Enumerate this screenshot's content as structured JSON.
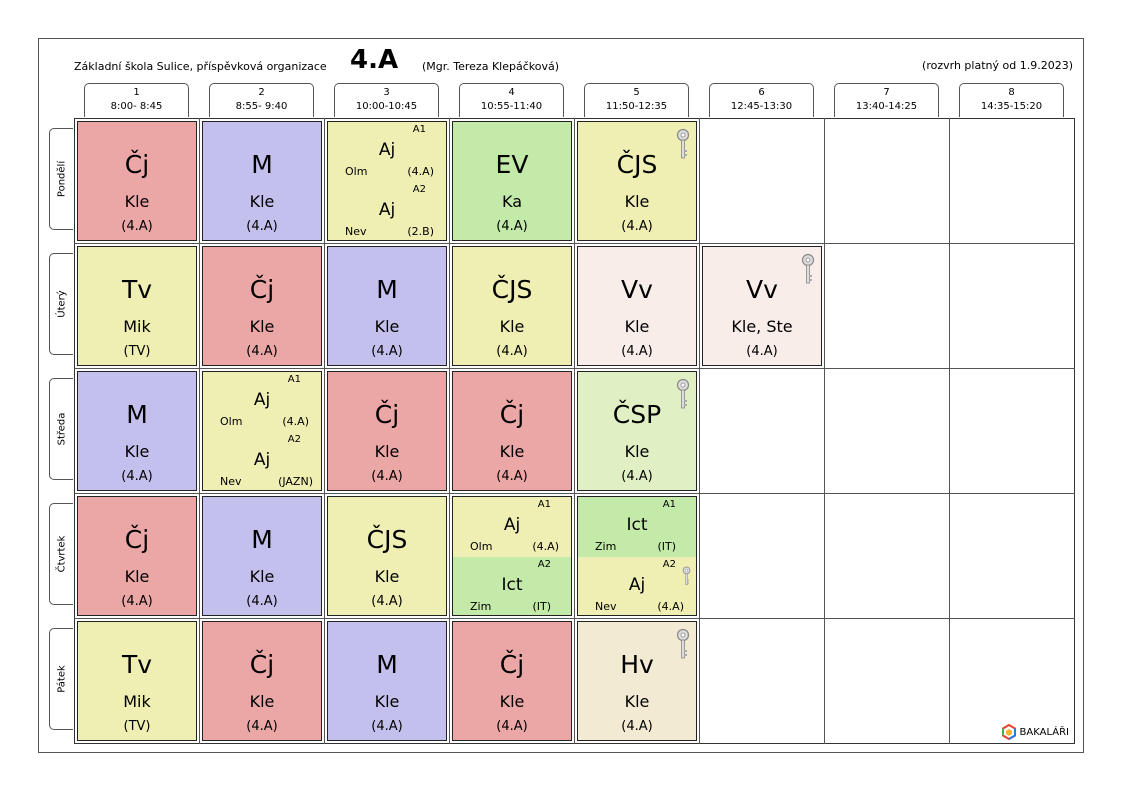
{
  "header": {
    "school": "Základní škola Sulice, příspěvková organizace",
    "class_name": "4.A",
    "teacher": "(Mgr. Tereza Klepáčková)",
    "valid_from": "(rozvrh platný od 1.9.2023)"
  },
  "periods": [
    {
      "num": "1",
      "time": "8:00- 8:45"
    },
    {
      "num": "2",
      "time": "8:55- 9:40"
    },
    {
      "num": "3",
      "time": "10:00-10:45"
    },
    {
      "num": "4",
      "time": "10:55-11:40"
    },
    {
      "num": "5",
      "time": "11:50-12:35"
    },
    {
      "num": "6",
      "time": "12:45-13:30"
    },
    {
      "num": "7",
      "time": "13:40-14:25"
    },
    {
      "num": "8",
      "time": "14:35-15:20"
    }
  ],
  "days": [
    "Pondělí",
    "Úterý",
    "Středa",
    "Čtvrtek",
    "Pátek"
  ],
  "lessons": {
    "mon_1": {
      "subject": "Čj",
      "teacher": "Kle",
      "room": "(4.A)"
    },
    "mon_2": {
      "subject": "M",
      "teacher": "Kle",
      "room": "(4.A)"
    },
    "mon_3": {
      "a1": {
        "group": "A1",
        "subject": "Aj",
        "teacher": "Olm",
        "room": "(4.A)"
      },
      "a2": {
        "group": "A2",
        "subject": "Aj",
        "teacher": "Nev",
        "room": "(2.B)"
      }
    },
    "mon_4": {
      "subject": "EV",
      "teacher": "Ka",
      "room": "(4.A)"
    },
    "mon_5": {
      "subject": "ČJS",
      "teacher": "Kle",
      "room": "(4.A)"
    },
    "tue_1": {
      "subject": "Tv",
      "teacher": "Mik",
      "room": "(TV)"
    },
    "tue_2": {
      "subject": "Čj",
      "teacher": "Kle",
      "room": "(4.A)"
    },
    "tue_3": {
      "subject": "M",
      "teacher": "Kle",
      "room": "(4.A)"
    },
    "tue_4": {
      "subject": "ČJS",
      "teacher": "Kle",
      "room": "(4.A)"
    },
    "tue_5": {
      "subject": "Vv",
      "teacher": "Kle",
      "room": "(4.A)"
    },
    "tue_6": {
      "subject": "Vv",
      "teacher": "Kle, Ste",
      "room": "(4.A)"
    },
    "wed_1": {
      "subject": "M",
      "teacher": "Kle",
      "room": "(4.A)"
    },
    "wed_2": {
      "a1": {
        "group": "A1",
        "subject": "Aj",
        "teacher": "Olm",
        "room": "(4.A)"
      },
      "a2": {
        "group": "A2",
        "subject": "Aj",
        "teacher": "Nev",
        "room": "(JAZN)"
      }
    },
    "wed_3": {
      "subject": "Čj",
      "teacher": "Kle",
      "room": "(4.A)"
    },
    "wed_4": {
      "subject": "Čj",
      "teacher": "Kle",
      "room": "(4.A)"
    },
    "wed_5": {
      "subject": "ČSP",
      "teacher": "Kle",
      "room": "(4.A)"
    },
    "thu_1": {
      "subject": "Čj",
      "teacher": "Kle",
      "room": "(4.A)"
    },
    "thu_2": {
      "subject": "M",
      "teacher": "Kle",
      "room": "(4.A)"
    },
    "thu_3": {
      "subject": "ČJS",
      "teacher": "Kle",
      "room": "(4.A)"
    },
    "thu_4": {
      "a1": {
        "group": "A1",
        "subject": "Aj",
        "teacher": "Olm",
        "room": "(4.A)"
      },
      "a2": {
        "group": "A2",
        "subject": "Ict",
        "teacher": "Zim",
        "room": "(IT)"
      }
    },
    "thu_5": {
      "a1": {
        "group": "A1",
        "subject": "Ict",
        "teacher": "Zim",
        "room": "(IT)"
      },
      "a2": {
        "group": "A2",
        "subject": "Aj",
        "teacher": "Nev",
        "room": "(4.A)"
      }
    },
    "fri_1": {
      "subject": "Tv",
      "teacher": "Mik",
      "room": "(TV)"
    },
    "fri_2": {
      "subject": "Čj",
      "teacher": "Kle",
      "room": "(4.A)"
    },
    "fri_3": {
      "subject": "M",
      "teacher": "Kle",
      "room": "(4.A)"
    },
    "fri_4": {
      "subject": "Čj",
      "teacher": "Kle",
      "room": "(4.A)"
    },
    "fri_5": {
      "subject": "Hv",
      "teacher": "Kle",
      "room": "(4.A)"
    }
  },
  "colors": {
    "czech": "#eaa7a6",
    "math": "#c3c0ed",
    "yellow": "#efeeb3",
    "green": "#c3eaa8",
    "light_pink": "#f8ede8",
    "light_green": "#e0f0c4",
    "beige": "#f3ead4"
  },
  "icons": {
    "key": "key-icon",
    "logo": "bakalari-logo-icon"
  },
  "footer": {
    "brand": "BAKALÁŘI"
  }
}
